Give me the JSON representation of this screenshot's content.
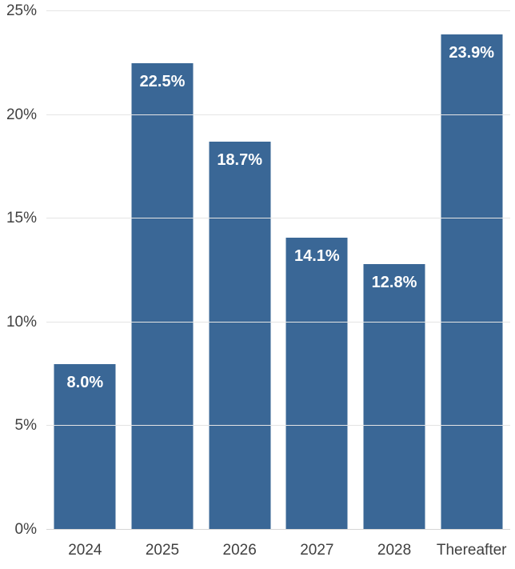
{
  "chart_data": {
    "type": "bar",
    "title": "",
    "xlabel": "",
    "ylabel": "",
    "categories": [
      "2024",
      "2025",
      "2026",
      "2027",
      "2028",
      "Thereafter"
    ],
    "values": [
      8.0,
      22.5,
      18.7,
      14.1,
      12.8,
      23.9
    ],
    "value_labels": [
      "8.0%",
      "22.5%",
      "18.7%",
      "14.1%",
      "12.8%",
      "23.9%"
    ],
    "ylim": [
      0,
      25
    ],
    "ytick_interval": 5,
    "ytick_labels": [
      "0%",
      "5%",
      "10%",
      "15%",
      "20%",
      "25%"
    ],
    "grid": true,
    "legend": false,
    "colors": {
      "bar": "#3a6796",
      "value_label": "#ffffff",
      "axis_text": "#404040",
      "gridline": "#e4e4e4",
      "baseline": "#d6d6d6",
      "background": "#ffffff"
    }
  }
}
